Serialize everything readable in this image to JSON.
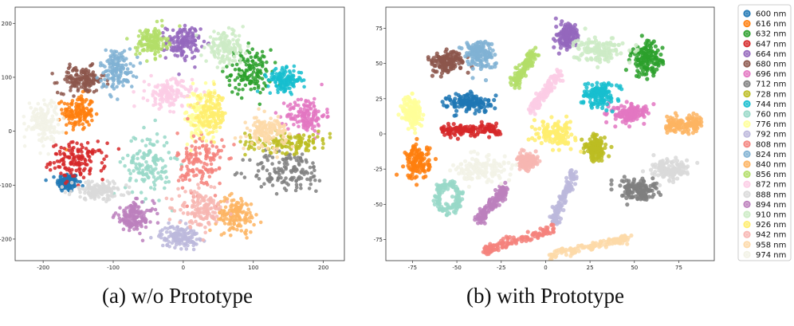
{
  "chart_data": [
    {
      "type": "scatter",
      "caption": "(a) w/o Prototype",
      "xlim": [
        -240,
        230
      ],
      "ylim": [
        -240,
        230
      ],
      "x_ticks": [
        -200,
        -100,
        0,
        100,
        200
      ],
      "y_ticks": [
        200,
        100,
        0,
        -100,
        -200
      ],
      "clusters": [
        {
          "label": "600 nm",
          "center": [
            -165,
            -95
          ],
          "spread": [
            14,
            16
          ],
          "shape": "blob"
        },
        {
          "label": "616 nm",
          "center": [
            -150,
            35
          ],
          "spread": [
            20,
            30
          ],
          "shape": "blob"
        },
        {
          "label": "632 nm",
          "center": [
            95,
            110
          ],
          "spread": [
            28,
            38
          ],
          "shape": "blob"
        },
        {
          "label": "647 nm",
          "center": [
            -150,
            -55
          ],
          "spread": [
            35,
            30
          ],
          "shape": "blob"
        },
        {
          "label": "664 nm",
          "center": [
            0,
            165
          ],
          "spread": [
            22,
            28
          ],
          "shape": "blob"
        },
        {
          "label": "680 nm",
          "center": [
            -145,
            95
          ],
          "spread": [
            30,
            22
          ],
          "shape": "blob"
        },
        {
          "label": "696 nm",
          "center": [
            175,
            30
          ],
          "spread": [
            25,
            30
          ],
          "shape": "blob"
        },
        {
          "label": "712 nm",
          "center": [
            150,
            -75
          ],
          "spread": [
            50,
            35
          ],
          "shape": "blob"
        },
        {
          "label": "728 nm",
          "center": [
            150,
            -20
          ],
          "spread": [
            55,
            18
          ],
          "shape": "blob"
        },
        {
          "label": "744 nm",
          "center": [
            145,
            95
          ],
          "spread": [
            22,
            18
          ],
          "shape": "blob"
        },
        {
          "label": "760 nm",
          "center": [
            -50,
            -60
          ],
          "spread": [
            30,
            55
          ],
          "shape": "blob"
        },
        {
          "label": "776 nm",
          "center": [
            25,
            30
          ],
          "spread": [
            22,
            45
          ],
          "shape": "blob"
        },
        {
          "label": "792 nm",
          "center": [
            -5,
            -195
          ],
          "spread": [
            25,
            18
          ],
          "shape": "blob"
        },
        {
          "label": "808 nm",
          "center": [
            25,
            -60
          ],
          "spread": [
            30,
            55
          ],
          "shape": "blob"
        },
        {
          "label": "824 nm",
          "center": [
            -95,
            115
          ],
          "spread": [
            22,
            35
          ],
          "shape": "blob"
        },
        {
          "label": "840 nm",
          "center": [
            75,
            -155
          ],
          "spread": [
            25,
            30
          ],
          "shape": "blob"
        },
        {
          "label": "856 nm",
          "center": [
            -45,
            165
          ],
          "spread": [
            20,
            25
          ],
          "shape": "blob"
        },
        {
          "label": "872 nm",
          "center": [
            -20,
            70
          ],
          "spread": [
            30,
            25
          ],
          "shape": "blob"
        },
        {
          "label": "888 nm",
          "center": [
            -120,
            -110
          ],
          "spread": [
            35,
            15
          ],
          "shape": "blob"
        },
        {
          "label": "894 nm",
          "center": [
            -70,
            -160
          ],
          "spread": [
            25,
            25
          ],
          "shape": "blob"
        },
        {
          "label": "910 nm",
          "center": [
            60,
            155
          ],
          "spread": [
            25,
            25
          ],
          "shape": "blob"
        },
        {
          "label": "926 nm",
          "center": [
            40,
            30
          ],
          "spread": [
            20,
            35
          ],
          "shape": "blob"
        },
        {
          "label": "942 nm",
          "center": [
            25,
            -145
          ],
          "spread": [
            30,
            30
          ],
          "shape": "blob"
        },
        {
          "label": "958 nm",
          "center": [
            120,
            0
          ],
          "spread": [
            25,
            25
          ],
          "shape": "blob"
        },
        {
          "label": "974 nm",
          "center": [
            -200,
            20
          ],
          "spread": [
            20,
            35
          ],
          "shape": "blob"
        }
      ]
    },
    {
      "type": "scatter",
      "caption": "(b) with Prototype",
      "xlim": [
        -90,
        95
      ],
      "ylim": [
        -90,
        90
      ],
      "x_ticks": [
        -75,
        -50,
        -25,
        0,
        25,
        50,
        75
      ],
      "y_ticks": [
        75,
        50,
        25,
        0,
        -25,
        -50,
        -75
      ],
      "clusters": [
        {
          "label": "600 nm",
          "center": [
            -42,
            22
          ],
          "spread": [
            12,
            6
          ],
          "shape": "blob"
        },
        {
          "label": "616 nm",
          "center": [
            -72,
            -20
          ],
          "spread": [
            6,
            11
          ],
          "shape": "blob"
        },
        {
          "label": "632 nm",
          "center": [
            57,
            53
          ],
          "spread": [
            8,
            11
          ],
          "shape": "blob"
        },
        {
          "label": "647 nm",
          "center": [
            -42,
            3
          ],
          "spread": [
            16,
            3
          ],
          "shape": "band"
        },
        {
          "label": "664 nm",
          "center": [
            12,
            70
          ],
          "spread": [
            6,
            9
          ],
          "shape": "blob"
        },
        {
          "label": "680 nm",
          "center": [
            -55,
            51
          ],
          "spread": [
            8,
            7
          ],
          "shape": "blob"
        },
        {
          "label": "696 nm",
          "center": [
            48,
            15
          ],
          "spread": [
            9,
            6
          ],
          "shape": "blob"
        },
        {
          "label": "712 nm",
          "center": [
            52,
            -40
          ],
          "spread": [
            10,
            7
          ],
          "shape": "blob"
        },
        {
          "label": "728 nm",
          "center": [
            28,
            -10
          ],
          "spread": [
            5,
            8
          ],
          "shape": "blob"
        },
        {
          "label": "744 nm",
          "center": [
            30,
            28
          ],
          "spread": [
            9,
            7
          ],
          "shape": "blob"
        },
        {
          "label": "760 nm",
          "center": [
            -55,
            -45
          ],
          "spread": [
            8,
            12
          ],
          "shape": "ring"
        },
        {
          "label": "776 nm",
          "center": [
            -75,
            15
          ],
          "spread": [
            5,
            11
          ],
          "shape": "blob"
        },
        {
          "label": "792 nm",
          "center": [
            10,
            -45
          ],
          "spread": [
            4,
            18
          ],
          "shape": "arc"
        },
        {
          "label": "808 nm",
          "center": [
            -15,
            -75
          ],
          "spread": [
            15,
            8
          ],
          "shape": "arc"
        },
        {
          "label": "824 nm",
          "center": [
            -38,
            57
          ],
          "spread": [
            8,
            10
          ],
          "shape": "blob"
        },
        {
          "label": "840 nm",
          "center": [
            78,
            7
          ],
          "spread": [
            10,
            4
          ],
          "shape": "band"
        },
        {
          "label": "856 nm",
          "center": [
            -12,
            47
          ],
          "spread": [
            4,
            12
          ],
          "shape": "arc"
        },
        {
          "label": "872 nm",
          "center": [
            0,
            30
          ],
          "spread": [
            6,
            14
          ],
          "shape": "arc"
        },
        {
          "label": "888 nm",
          "center": [
            70,
            -25
          ],
          "spread": [
            10,
            7
          ],
          "shape": "blob"
        },
        {
          "label": "894 nm",
          "center": [
            -30,
            -50
          ],
          "spread": [
            6,
            12
          ],
          "shape": "arc"
        },
        {
          "label": "910 nm",
          "center": [
            30,
            60
          ],
          "spread": [
            12,
            8
          ],
          "shape": "blob"
        },
        {
          "label": "926 nm",
          "center": [
            5,
            0
          ],
          "spread": [
            10,
            8
          ],
          "shape": "blob"
        },
        {
          "label": "942 nm",
          "center": [
            -10,
            -20
          ],
          "spread": [
            5,
            5
          ],
          "shape": "blob"
        },
        {
          "label": "958 nm",
          "center": [
            25,
            -80
          ],
          "spread": [
            18,
            7
          ],
          "shape": "arc"
        },
        {
          "label": "974 nm",
          "center": [
            -35,
            -25
          ],
          "spread": [
            15,
            7
          ],
          "shape": "blob"
        }
      ]
    }
  ],
  "legend": {
    "items": [
      {
        "label": "600 nm",
        "color": "#1f77b4"
      },
      {
        "label": "616 nm",
        "color": "#ff7f0e"
      },
      {
        "label": "632 nm",
        "color": "#2ca02c"
      },
      {
        "label": "647 nm",
        "color": "#d62728"
      },
      {
        "label": "664 nm",
        "color": "#9467bd"
      },
      {
        "label": "680 nm",
        "color": "#8c564b"
      },
      {
        "label": "696 nm",
        "color": "#e377c2"
      },
      {
        "label": "712 nm",
        "color": "#7f7f7f"
      },
      {
        "label": "728 nm",
        "color": "#bcbd22"
      },
      {
        "label": "744 nm",
        "color": "#17becf"
      },
      {
        "label": "760 nm",
        "color": "#98d8c8"
      },
      {
        "label": "776 nm",
        "color": "#ffff99"
      },
      {
        "label": "792 nm",
        "color": "#bcb8dc"
      },
      {
        "label": "808 nm",
        "color": "#f4837d"
      },
      {
        "label": "824 nm",
        "color": "#80b1d3"
      },
      {
        "label": "840 nm",
        "color": "#fdb462"
      },
      {
        "label": "856 nm",
        "color": "#b3de69"
      },
      {
        "label": "872 nm",
        "color": "#fccde5"
      },
      {
        "label": "888 nm",
        "color": "#d9d9d9"
      },
      {
        "label": "894 nm",
        "color": "#bc80bd"
      },
      {
        "label": "910 nm",
        "color": "#ccebc5"
      },
      {
        "label": "926 nm",
        "color": "#ffed6f"
      },
      {
        "label": "942 nm",
        "color": "#f7b6b2"
      },
      {
        "label": "958 nm",
        "color": "#fdd9a8"
      },
      {
        "label": "974 nm",
        "color": "#f2f2e6"
      }
    ]
  }
}
